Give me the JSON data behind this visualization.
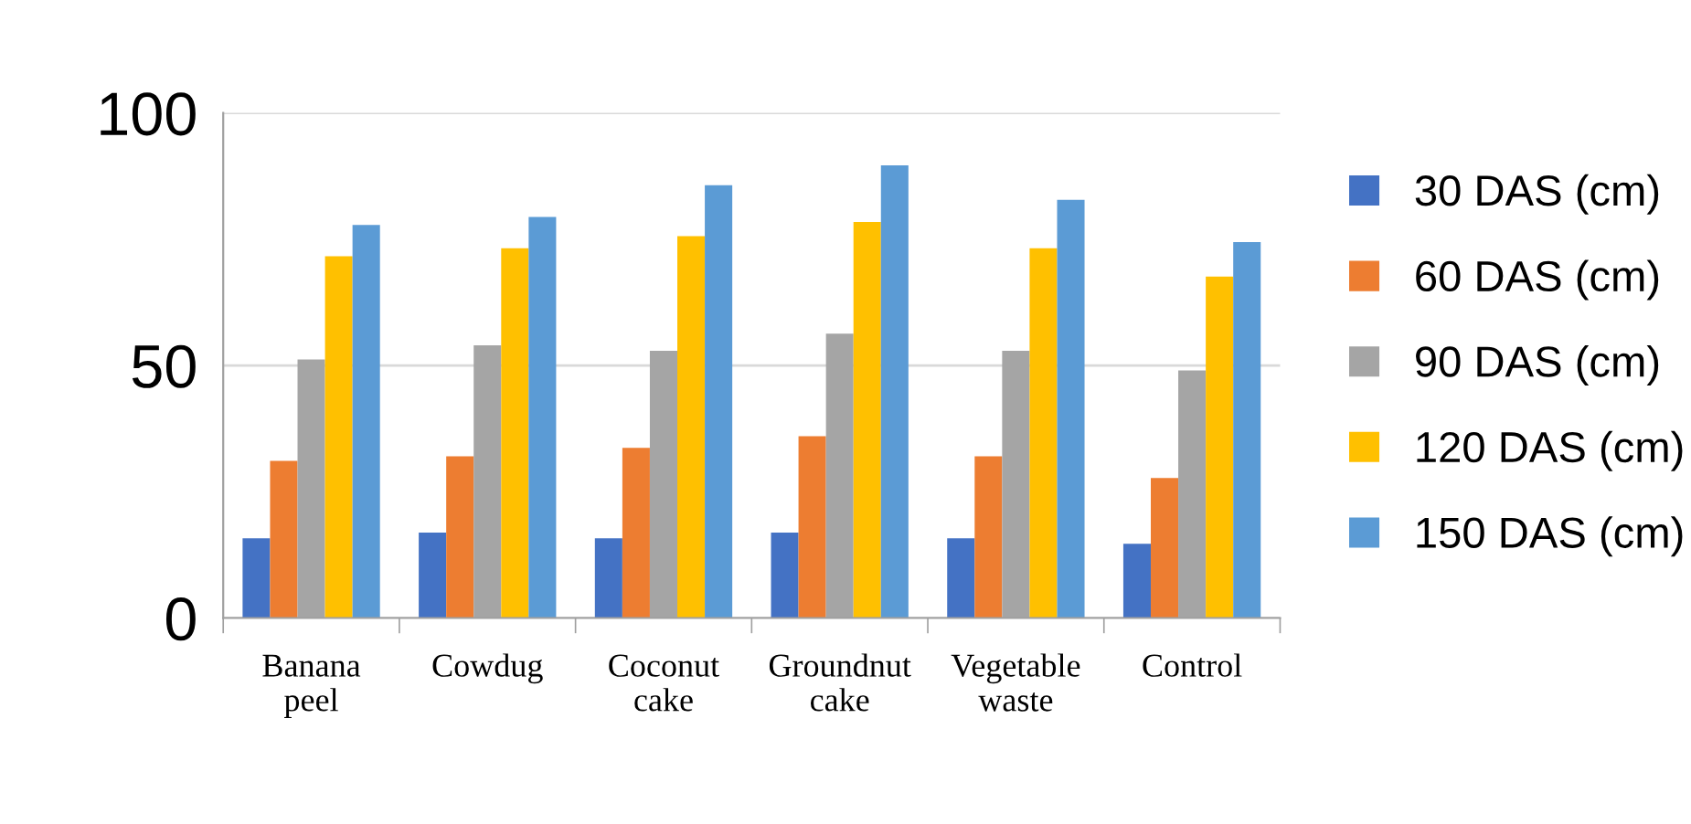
{
  "chart_data": {
    "type": "bar",
    "categories": [
      "Banana\npeel",
      "Cowdug",
      "Coconut\ncake",
      "Groundnut\ncake",
      "Vegetable\nwaste",
      "Control"
    ],
    "series": [
      {
        "name": "30 DAS (cm)",
        "color": "#4472c4",
        "values": [
          15.8,
          16.9,
          15.8,
          16.9,
          15.8,
          14.7
        ]
      },
      {
        "name": "60 DAS (cm)",
        "color": "#ed7d31",
        "values": [
          31.1,
          32.0,
          33.7,
          36.0,
          32.0,
          27.7
        ]
      },
      {
        "name": "90 DAS (cm)",
        "color": "#a5a5a5",
        "values": [
          51.2,
          54.0,
          52.9,
          56.3,
          52.9,
          49.0
        ]
      },
      {
        "name": "120 DAS (cm)",
        "color": "#ffc000",
        "values": [
          71.6,
          73.2,
          75.6,
          78.4,
          73.2,
          67.6
        ]
      },
      {
        "name": "150 DAS (cm)",
        "color": "#5b9bd5",
        "values": [
          77.8,
          79.4,
          85.7,
          89.6,
          82.8,
          74.4
        ]
      }
    ],
    "ylim": [
      0,
      100
    ],
    "yticks": [
      0,
      50,
      100
    ],
    "grid": "y",
    "legend": "right"
  }
}
